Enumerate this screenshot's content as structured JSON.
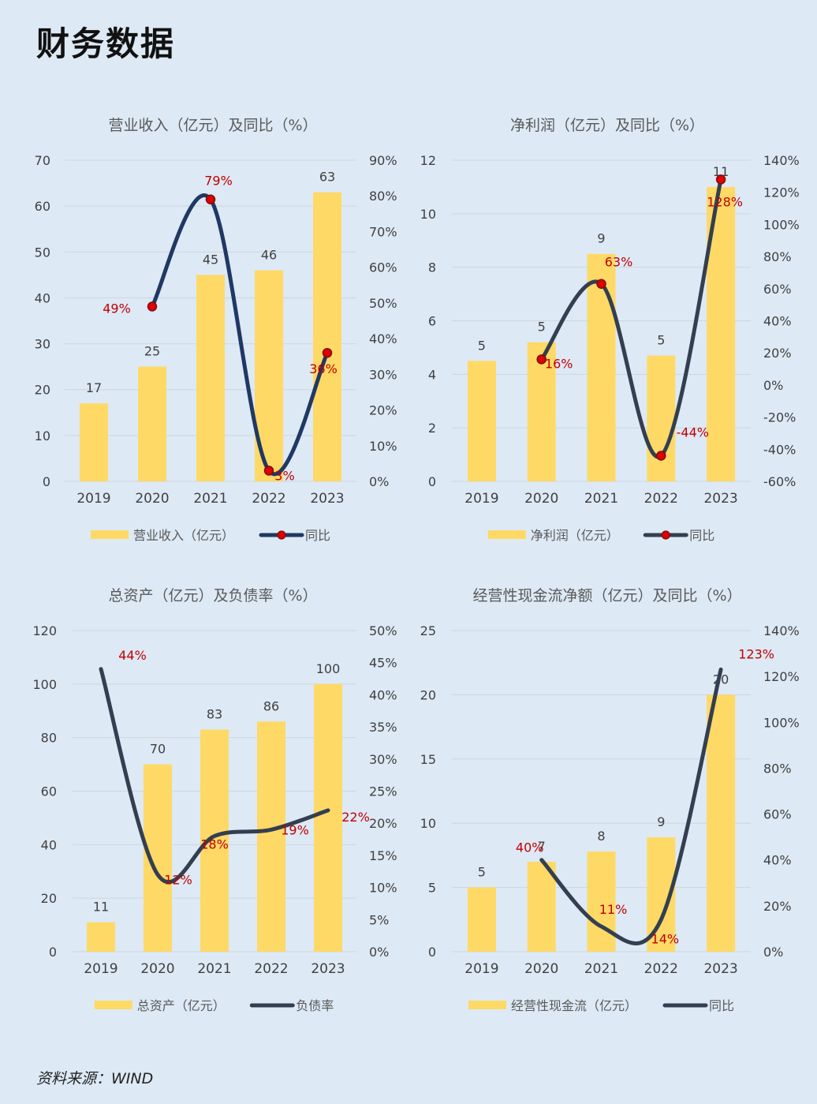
{
  "page_title": "财务数据",
  "source": "资料来源：WIND",
  "colors": {
    "background": "#dde9f5",
    "bar": "#ffd966",
    "line_dark": "#333f50",
    "line_navy": "#1f3864",
    "label_red": "#c00000",
    "marker_red": "#e00000"
  },
  "chart_data": [
    {
      "type": "bar",
      "title": "营业收入（亿元）及同比（%）",
      "categories": [
        "2019",
        "2020",
        "2021",
        "2022",
        "2023"
      ],
      "series": [
        {
          "name": "营业收入（亿元）",
          "type": "bar",
          "axis": "left",
          "values": [
            17,
            25,
            45,
            46,
            63
          ],
          "labels": [
            "17",
            "25",
            "45",
            "46",
            "63"
          ]
        },
        {
          "name": "同比",
          "type": "line",
          "axis": "right",
          "markers": true,
          "values": [
            null,
            49,
            79,
            3,
            36
          ],
          "labels": [
            "",
            "49%",
            "79%",
            "3%",
            "36%"
          ]
        }
      ],
      "y_left": {
        "min": 0,
        "max": 70,
        "ticks": [
          "0",
          "10",
          "20",
          "30",
          "40",
          "50",
          "60",
          "70"
        ]
      },
      "y_right": {
        "min": 0,
        "max": 90,
        "ticks": [
          "0%",
          "10%",
          "20%",
          "30%",
          "40%",
          "50%",
          "60%",
          "70%",
          "80%",
          "90%"
        ]
      },
      "grid": true,
      "legend": "bottom"
    },
    {
      "type": "bar",
      "title": "净利润（亿元）及同比（%）",
      "categories": [
        "2019",
        "2020",
        "2021",
        "2022",
        "2023"
      ],
      "series": [
        {
          "name": "净利润（亿元）",
          "type": "bar",
          "axis": "left",
          "values": [
            4.5,
            5.2,
            8.5,
            4.7,
            11
          ],
          "labels": [
            "5",
            "5",
            "9",
            "5",
            "11"
          ]
        },
        {
          "name": "同比",
          "type": "line",
          "axis": "right",
          "markers": true,
          "values": [
            null,
            16,
            63,
            -44,
            128
          ],
          "labels": [
            "",
            "16%",
            "63%",
            "-44%",
            "128%"
          ]
        }
      ],
      "y_left": {
        "min": 0,
        "max": 12,
        "ticks": [
          "0",
          "2",
          "4",
          "6",
          "8",
          "10",
          "12"
        ]
      },
      "y_right": {
        "min": -60,
        "max": 140,
        "ticks": [
          "-60%",
          "-40%",
          "-20%",
          "0%",
          "20%",
          "40%",
          "60%",
          "80%",
          "100%",
          "120%",
          "140%"
        ]
      },
      "grid": true,
      "legend": "bottom"
    },
    {
      "type": "bar",
      "title": "总资产（亿元）及负债率（%）",
      "categories": [
        "2019",
        "2020",
        "2021",
        "2022",
        "2023"
      ],
      "series": [
        {
          "name": "总资产（亿元）",
          "type": "bar",
          "axis": "left",
          "values": [
            11,
            70,
            83,
            86,
            100
          ],
          "labels": [
            "11",
            "70",
            "83",
            "86",
            "100"
          ]
        },
        {
          "name": "负债率",
          "type": "line",
          "axis": "right",
          "markers": false,
          "values": [
            44,
            12,
            18,
            19,
            22
          ],
          "labels": [
            "44%",
            "12%",
            "18%",
            "19%",
            "22%"
          ]
        }
      ],
      "y_left": {
        "min": 0,
        "max": 120,
        "ticks": [
          "0",
          "20",
          "40",
          "60",
          "80",
          "100",
          "120"
        ]
      },
      "y_right": {
        "min": 0,
        "max": 50,
        "ticks": [
          "0%",
          "5%",
          "10%",
          "15%",
          "20%",
          "25%",
          "30%",
          "35%",
          "40%",
          "45%",
          "50%"
        ]
      },
      "grid": true,
      "legend": "bottom"
    },
    {
      "type": "bar",
      "title": "经营性现金流净额（亿元）及同比（%）",
      "categories": [
        "2019",
        "2020",
        "2021",
        "2022",
        "2023"
      ],
      "series": [
        {
          "name": "经营性现金流（亿元）",
          "type": "bar",
          "axis": "left",
          "values": [
            5,
            7,
            7.8,
            8.9,
            20
          ],
          "labels": [
            "5",
            "7",
            "8",
            "9",
            "20"
          ]
        },
        {
          "name": "同比",
          "type": "line",
          "axis": "right",
          "markers": false,
          "values": [
            null,
            40,
            11,
            14,
            123
          ],
          "labels": [
            "",
            "40%",
            "11%",
            "14%",
            "123%"
          ]
        }
      ],
      "y_left": {
        "min": 0,
        "max": 25,
        "ticks": [
          "0",
          "5",
          "10",
          "15",
          "20",
          "25"
        ]
      },
      "y_right": {
        "min": 0,
        "max": 140,
        "ticks": [
          "0%",
          "20%",
          "40%",
          "60%",
          "80%",
          "100%",
          "120%",
          "140%"
        ]
      },
      "grid": true,
      "legend": "bottom"
    }
  ]
}
